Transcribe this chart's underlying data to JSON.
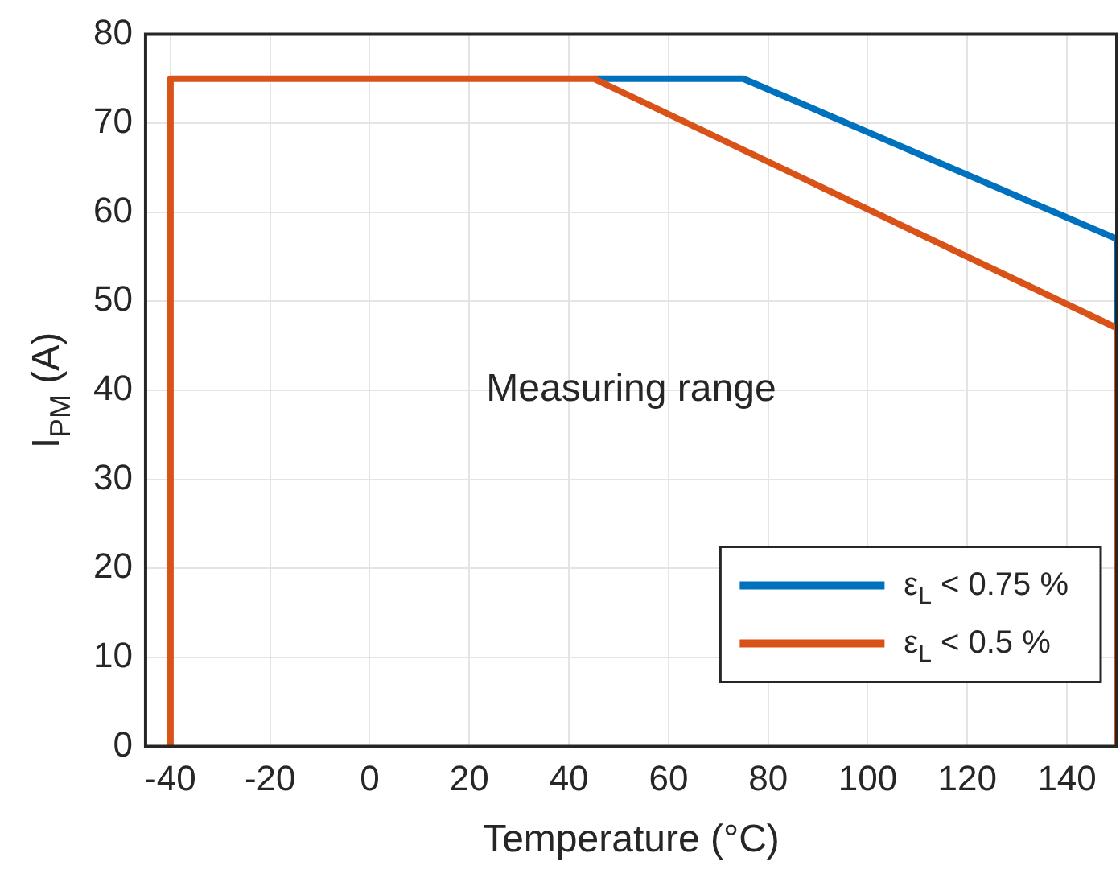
{
  "chart_data": {
    "type": "line",
    "xlabel": "Temperature (°C)",
    "ylabel": "I$_{PM}$ (A)",
    "xlim": [
      -45,
      150
    ],
    "xticks": [
      -40,
      -20,
      0,
      20,
      40,
      60,
      80,
      100,
      120,
      140
    ],
    "ylim": [
      0,
      80
    ],
    "yticks": [
      0,
      10,
      20,
      30,
      40,
      50,
      60,
      70,
      80
    ],
    "grid": true,
    "legend": "bottom right",
    "marker": "none",
    "line_style": "solid",
    "annotations": [
      "Measuring range"
    ],
    "series": [
      {
        "name": "ε$_{L}$ < 0.75 %",
        "color": "#0072bd",
        "x": [
          45,
          75,
          150,
          150
        ],
        "values": [
          75,
          75,
          57,
          47
        ]
      },
      {
        "name": "ε$_{L}$ < 0.5 %",
        "color": "#d95319",
        "x": [
          -40,
          -40,
          45,
          150,
          150
        ],
        "values": [
          0,
          75,
          75,
          47,
          0
        ]
      }
    ]
  }
}
